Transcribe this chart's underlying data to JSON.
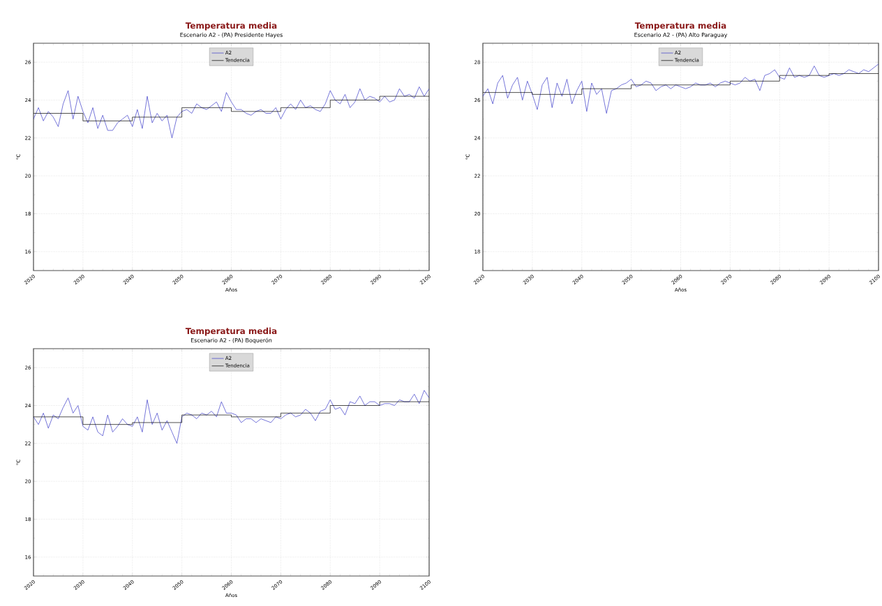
{
  "chart_data": [
    {
      "type": "line",
      "title": "Temperatura media",
      "subtitle": "Escenario A2 - (PA) Presidente Hayes",
      "xlabel": "Años",
      "ylabel": "°C",
      "x": [
        2020,
        2021,
        2022,
        2023,
        2024,
        2025,
        2026,
        2027,
        2028,
        2029,
        2030,
        2031,
        2032,
        2033,
        2034,
        2035,
        2036,
        2037,
        2038,
        2039,
        2040,
        2041,
        2042,
        2043,
        2044,
        2045,
        2046,
        2047,
        2048,
        2049,
        2050,
        2051,
        2052,
        2053,
        2054,
        2055,
        2056,
        2057,
        2058,
        2059,
        2060,
        2061,
        2062,
        2063,
        2064,
        2065,
        2066,
        2067,
        2068,
        2069,
        2070,
        2071,
        2072,
        2073,
        2074,
        2075,
        2076,
        2077,
        2078,
        2079,
        2080,
        2081,
        2082,
        2083,
        2084,
        2085,
        2086,
        2087,
        2088,
        2089,
        2090,
        2091,
        2092,
        2093,
        2094,
        2095,
        2096,
        2097,
        2098,
        2099,
        2100
      ],
      "series": [
        {
          "name": "A2",
          "color": "#3a3ac8",
          "values": [
            23.0,
            23.6,
            22.9,
            23.4,
            23.1,
            22.6,
            23.8,
            24.5,
            23.0,
            24.2,
            23.4,
            22.8,
            23.6,
            22.5,
            23.2,
            22.4,
            22.4,
            22.8,
            23.0,
            23.2,
            22.6,
            23.5,
            22.5,
            24.2,
            22.8,
            23.3,
            22.9,
            23.2,
            22.0,
            23.1,
            23.4,
            23.5,
            23.3,
            23.8,
            23.6,
            23.5,
            23.7,
            23.9,
            23.4,
            24.4,
            23.9,
            23.5,
            23.5,
            23.3,
            23.2,
            23.4,
            23.5,
            23.3,
            23.3,
            23.6,
            23.0,
            23.5,
            23.8,
            23.5,
            24.0,
            23.6,
            23.7,
            23.5,
            23.4,
            23.8,
            24.5,
            24.0,
            23.8,
            24.3,
            23.6,
            23.9,
            24.6,
            24.0,
            24.2,
            24.1,
            23.9,
            24.2,
            23.9,
            24.0,
            24.6,
            24.2,
            24.3,
            24.1,
            24.7,
            24.2,
            24.6
          ]
        },
        {
          "name": "Tendencia",
          "type": "step",
          "color": "#000000",
          "x": [
            2020,
            2030,
            2040,
            2050,
            2060,
            2070,
            2080,
            2090,
            2100
          ],
          "values": [
            23.3,
            22.9,
            23.1,
            23.6,
            23.4,
            23.6,
            24.0,
            24.2,
            24.2
          ]
        }
      ],
      "xlim": [
        2020,
        2100
      ],
      "ylim": [
        15,
        27
      ],
      "xticks": [
        2020,
        2030,
        2040,
        2050,
        2060,
        2070,
        2080,
        2090,
        2100
      ],
      "yticks": [
        16,
        18,
        20,
        22,
        24,
        26
      ],
      "grid": true,
      "legend": "top"
    },
    {
      "type": "line",
      "title": "Temperatura media",
      "subtitle": "Escenario A2 - (PA) Alto Paraguay",
      "xlabel": "Años",
      "ylabel": "°C",
      "x": [
        2020,
        2021,
        2022,
        2023,
        2024,
        2025,
        2026,
        2027,
        2028,
        2029,
        2030,
        2031,
        2032,
        2033,
        2034,
        2035,
        2036,
        2037,
        2038,
        2039,
        2040,
        2041,
        2042,
        2043,
        2044,
        2045,
        2046,
        2047,
        2048,
        2049,
        2050,
        2051,
        2052,
        2053,
        2054,
        2055,
        2056,
        2057,
        2058,
        2059,
        2060,
        2061,
        2062,
        2063,
        2064,
        2065,
        2066,
        2067,
        2068,
        2069,
        2070,
        2071,
        2072,
        2073,
        2074,
        2075,
        2076,
        2077,
        2078,
        2079,
        2080,
        2081,
        2082,
        2083,
        2084,
        2085,
        2086,
        2087,
        2088,
        2089,
        2090,
        2091,
        2092,
        2093,
        2094,
        2095,
        2096,
        2097,
        2098,
        2099,
        2100
      ],
      "series": [
        {
          "name": "A2",
          "color": "#3a3ac8",
          "values": [
            26.2,
            26.6,
            25.8,
            26.9,
            27.3,
            26.1,
            26.8,
            27.2,
            26.0,
            27.0,
            26.3,
            25.5,
            26.8,
            27.2,
            25.6,
            26.9,
            26.2,
            27.1,
            25.8,
            26.5,
            27.0,
            25.4,
            26.9,
            26.3,
            26.6,
            25.3,
            26.5,
            26.6,
            26.8,
            26.9,
            27.1,
            26.7,
            26.8,
            27.0,
            26.9,
            26.5,
            26.7,
            26.8,
            26.6,
            26.8,
            26.7,
            26.6,
            26.7,
            26.9,
            26.8,
            26.8,
            26.9,
            26.7,
            26.9,
            27.0,
            26.9,
            26.8,
            26.9,
            27.2,
            27.0,
            27.1,
            26.5,
            27.3,
            27.4,
            27.6,
            27.2,
            27.1,
            27.7,
            27.2,
            27.3,
            27.2,
            27.3,
            27.8,
            27.3,
            27.2,
            27.3,
            27.4,
            27.3,
            27.4,
            27.6,
            27.5,
            27.4,
            27.6,
            27.5,
            27.7,
            27.9
          ]
        },
        {
          "name": "Tendencia",
          "type": "step",
          "color": "#000000",
          "x": [
            2020,
            2030,
            2040,
            2050,
            2060,
            2070,
            2080,
            2090,
            2100
          ],
          "values": [
            26.4,
            26.3,
            26.6,
            26.8,
            26.8,
            27.0,
            27.3,
            27.4,
            27.4
          ]
        }
      ],
      "xlim": [
        2020,
        2100
      ],
      "ylim": [
        17,
        29
      ],
      "xticks": [
        2020,
        2030,
        2040,
        2050,
        2060,
        2070,
        2080,
        2090,
        2100
      ],
      "yticks": [
        18,
        20,
        22,
        24,
        26,
        28
      ],
      "grid": true,
      "legend": "top"
    },
    {
      "type": "line",
      "title": "Temperatura media",
      "subtitle": "Escenario A2 - (PA) Boquerón",
      "xlabel": "Años",
      "ylabel": "°C",
      "x": [
        2020,
        2021,
        2022,
        2023,
        2024,
        2025,
        2026,
        2027,
        2028,
        2029,
        2030,
        2031,
        2032,
        2033,
        2034,
        2035,
        2036,
        2037,
        2038,
        2039,
        2040,
        2041,
        2042,
        2043,
        2044,
        2045,
        2046,
        2047,
        2048,
        2049,
        2050,
        2051,
        2052,
        2053,
        2054,
        2055,
        2056,
        2057,
        2058,
        2059,
        2060,
        2061,
        2062,
        2063,
        2064,
        2065,
        2066,
        2067,
        2068,
        2069,
        2070,
        2071,
        2072,
        2073,
        2074,
        2075,
        2076,
        2077,
        2078,
        2079,
        2080,
        2081,
        2082,
        2083,
        2084,
        2085,
        2086,
        2087,
        2088,
        2089,
        2090,
        2091,
        2092,
        2093,
        2094,
        2095,
        2096,
        2097,
        2098,
        2099,
        2100
      ],
      "series": [
        {
          "name": "A2",
          "color": "#3a3ac8",
          "values": [
            23.4,
            23.0,
            23.6,
            22.8,
            23.5,
            23.3,
            23.9,
            24.4,
            23.6,
            24.0,
            22.9,
            22.7,
            23.4,
            22.6,
            22.4,
            23.5,
            22.6,
            22.9,
            23.3,
            23.0,
            22.9,
            23.4,
            22.6,
            24.3,
            23.0,
            23.6,
            22.7,
            23.2,
            22.6,
            22.0,
            23.4,
            23.6,
            23.5,
            23.3,
            23.6,
            23.5,
            23.7,
            23.4,
            24.2,
            23.6,
            23.6,
            23.5,
            23.1,
            23.3,
            23.3,
            23.1,
            23.3,
            23.2,
            23.1,
            23.4,
            23.3,
            23.5,
            23.6,
            23.4,
            23.5,
            23.8,
            23.6,
            23.2,
            23.7,
            23.8,
            24.3,
            23.8,
            23.9,
            23.5,
            24.2,
            24.1,
            24.5,
            24.0,
            24.2,
            24.2,
            24.0,
            24.1,
            24.1,
            24.0,
            24.3,
            24.2,
            24.2,
            24.6,
            24.1,
            24.8,
            24.4
          ]
        },
        {
          "name": "Tendencia",
          "type": "step",
          "color": "#000000",
          "x": [
            2020,
            2030,
            2040,
            2050,
            2060,
            2070,
            2080,
            2090,
            2100
          ],
          "values": [
            23.4,
            23.0,
            23.1,
            23.5,
            23.4,
            23.6,
            24.0,
            24.2,
            24.2
          ]
        }
      ],
      "xlim": [
        2020,
        2100
      ],
      "ylim": [
        15,
        27
      ],
      "xticks": [
        2020,
        2030,
        2040,
        2050,
        2060,
        2070,
        2080,
        2090,
        2100
      ],
      "yticks": [
        16,
        18,
        20,
        22,
        24,
        26
      ],
      "grid": true,
      "legend": "top"
    }
  ]
}
